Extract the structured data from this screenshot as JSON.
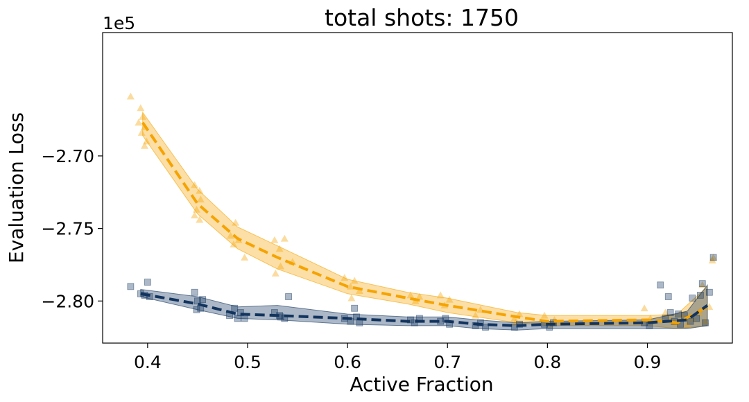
{
  "chart_data": {
    "type": "scatter",
    "title": "total shots: 1750",
    "xlabel": "Active Fraction",
    "ylabel": "Evaluation Loss",
    "offset_text": "1e5",
    "xlim": [
      0.355,
      0.985
    ],
    "ylim": [
      -2.829,
      -2.615
    ],
    "xticks": [
      0.4,
      0.5,
      0.6,
      0.7,
      0.8,
      0.9
    ],
    "xtick_labels": [
      "0.4",
      "0.5",
      "0.6",
      "0.7",
      "0.8",
      "0.9"
    ],
    "yticks": [
      -2.7,
      -2.75,
      -2.8
    ],
    "ytick_labels": [
      "−2.70",
      "−2.75",
      "−2.80"
    ],
    "series": [
      {
        "name": "orange",
        "color": "#f5a300",
        "marker": "triangle",
        "mean": [
          [
            0.395,
            -2.677
          ],
          [
            0.45,
            -2.733
          ],
          [
            0.49,
            -2.757
          ],
          [
            0.53,
            -2.77
          ],
          [
            0.6,
            -2.79
          ],
          [
            0.66,
            -2.798
          ],
          [
            0.7,
            -2.803
          ],
          [
            0.77,
            -2.811
          ],
          [
            0.8,
            -2.814
          ],
          [
            0.9,
            -2.813
          ],
          [
            0.93,
            -2.815
          ],
          [
            0.96,
            -2.804
          ]
        ],
        "band": [
          [
            0.395,
            -2.67,
            -2.686
          ],
          [
            0.45,
            -2.723,
            -2.74
          ],
          [
            0.49,
            -2.749,
            -2.764
          ],
          [
            0.53,
            -2.762,
            -2.778
          ],
          [
            0.6,
            -2.785,
            -2.795
          ],
          [
            0.66,
            -2.794,
            -2.802
          ],
          [
            0.7,
            -2.798,
            -2.808
          ],
          [
            0.77,
            -2.808,
            -2.815
          ],
          [
            0.8,
            -2.81,
            -2.817
          ],
          [
            0.9,
            -2.81,
            -2.817
          ],
          [
            0.93,
            -2.809,
            -2.819
          ],
          [
            0.96,
            -2.79,
            -2.817
          ]
        ],
        "points": [
          [
            0.383,
            -2.659
          ],
          [
            0.393,
            -2.667
          ],
          [
            0.395,
            -2.673
          ],
          [
            0.391,
            -2.677
          ],
          [
            0.397,
            -2.68
          ],
          [
            0.394,
            -2.684
          ],
          [
            0.399,
            -2.69
          ],
          [
            0.397,
            -2.693
          ],
          [
            0.447,
            -2.72
          ],
          [
            0.452,
            -2.724
          ],
          [
            0.453,
            -2.73
          ],
          [
            0.449,
            -2.737
          ],
          [
            0.447,
            -2.741
          ],
          [
            0.452,
            -2.744
          ],
          [
            0.483,
            -2.755
          ],
          [
            0.488,
            -2.746
          ],
          [
            0.491,
            -2.758
          ],
          [
            0.486,
            -2.761
          ],
          [
            0.497,
            -2.77
          ],
          [
            0.527,
            -2.758
          ],
          [
            0.532,
            -2.764
          ],
          [
            0.537,
            -2.757
          ],
          [
            0.533,
            -2.776
          ],
          [
            0.528,
            -2.781
          ],
          [
            0.545,
            -2.773
          ],
          [
            0.597,
            -2.784
          ],
          [
            0.603,
            -2.79
          ],
          [
            0.607,
            -2.786
          ],
          [
            0.612,
            -2.793
          ],
          [
            0.604,
            -2.798
          ],
          [
            0.663,
            -2.796
          ],
          [
            0.668,
            -2.8
          ],
          [
            0.672,
            -2.797
          ],
          [
            0.693,
            -2.796
          ],
          [
            0.697,
            -2.803
          ],
          [
            0.702,
            -2.799
          ],
          [
            0.733,
            -2.806
          ],
          [
            0.728,
            -2.81
          ],
          [
            0.767,
            -2.812
          ],
          [
            0.772,
            -2.809
          ],
          [
            0.768,
            -2.815
          ],
          [
            0.797,
            -2.81
          ],
          [
            0.803,
            -2.816
          ],
          [
            0.807,
            -2.813
          ],
          [
            0.897,
            -2.805
          ],
          [
            0.903,
            -2.812
          ],
          [
            0.918,
            -2.808
          ],
          [
            0.923,
            -2.813
          ],
          [
            0.928,
            -2.815
          ],
          [
            0.935,
            -2.81
          ],
          [
            0.94,
            -2.816
          ],
          [
            0.945,
            -2.812
          ],
          [
            0.952,
            -2.808
          ],
          [
            0.955,
            -2.789
          ],
          [
            0.958,
            -2.814
          ],
          [
            0.962,
            -2.804
          ],
          [
            0.965,
            -2.772
          ],
          [
            0.966,
            -2.77
          ]
        ]
      },
      {
        "name": "navy",
        "color": "#12345e",
        "marker": "square",
        "mean": [
          [
            0.393,
            -2.795
          ],
          [
            0.45,
            -2.802
          ],
          [
            0.49,
            -2.809
          ],
          [
            0.53,
            -2.81
          ],
          [
            0.6,
            -2.812
          ],
          [
            0.66,
            -2.814
          ],
          [
            0.7,
            -2.814
          ],
          [
            0.73,
            -2.816
          ],
          [
            0.77,
            -2.817
          ],
          [
            0.8,
            -2.816
          ],
          [
            0.9,
            -2.815
          ],
          [
            0.94,
            -2.813
          ],
          [
            0.96,
            -2.803
          ]
        ],
        "band": [
          [
            0.393,
            -2.792,
            -2.797
          ],
          [
            0.45,
            -2.797,
            -2.806
          ],
          [
            0.49,
            -2.804,
            -2.812
          ],
          [
            0.53,
            -2.803,
            -2.813
          ],
          [
            0.6,
            -2.809,
            -2.816
          ],
          [
            0.66,
            -2.811,
            -2.817
          ],
          [
            0.7,
            -2.811,
            -2.817
          ],
          [
            0.73,
            -2.813,
            -2.819
          ],
          [
            0.77,
            -2.815,
            -2.82
          ],
          [
            0.8,
            -2.814,
            -2.819
          ],
          [
            0.9,
            -2.813,
            -2.819
          ],
          [
            0.94,
            -2.807,
            -2.819
          ],
          [
            0.96,
            -2.789,
            -2.817
          ]
        ],
        "points": [
          [
            0.383,
            -2.79
          ],
          [
            0.393,
            -2.795
          ],
          [
            0.397,
            -2.796
          ],
          [
            0.4,
            -2.787
          ],
          [
            0.402,
            -2.797
          ],
          [
            0.447,
            -2.794
          ],
          [
            0.45,
            -2.8
          ],
          [
            0.453,
            -2.805
          ],
          [
            0.449,
            -2.806
          ],
          [
            0.455,
            -2.799
          ],
          [
            0.482,
            -2.81
          ],
          [
            0.487,
            -2.805
          ],
          [
            0.49,
            -2.812
          ],
          [
            0.493,
            -2.808
          ],
          [
            0.497,
            -2.812
          ],
          [
            0.527,
            -2.808
          ],
          [
            0.532,
            -2.81
          ],
          [
            0.537,
            -2.812
          ],
          [
            0.533,
            -2.811
          ],
          [
            0.541,
            -2.797
          ],
          [
            0.597,
            -2.812
          ],
          [
            0.603,
            -2.814
          ],
          [
            0.609,
            -2.811
          ],
          [
            0.612,
            -2.815
          ],
          [
            0.607,
            -2.805
          ],
          [
            0.663,
            -2.813
          ],
          [
            0.667,
            -2.815
          ],
          [
            0.672,
            -2.812
          ],
          [
            0.693,
            -2.814
          ],
          [
            0.698,
            -2.812
          ],
          [
            0.702,
            -2.816
          ],
          [
            0.728,
            -2.817
          ],
          [
            0.733,
            -2.815
          ],
          [
            0.738,
            -2.818
          ],
          [
            0.767,
            -2.818
          ],
          [
            0.772,
            -2.816
          ],
          [
            0.797,
            -2.816
          ],
          [
            0.802,
            -2.818
          ],
          [
            0.806,
            -2.815
          ],
          [
            0.897,
            -2.815
          ],
          [
            0.902,
            -2.817
          ],
          [
            0.913,
            -2.789
          ],
          [
            0.918,
            -2.812
          ],
          [
            0.921,
            -2.797
          ],
          [
            0.923,
            -2.808
          ],
          [
            0.927,
            -2.814
          ],
          [
            0.931,
            -2.809
          ],
          [
            0.933,
            -2.816
          ],
          [
            0.937,
            -2.81
          ],
          [
            0.943,
            -2.814
          ],
          [
            0.945,
            -2.798
          ],
          [
            0.949,
            -2.812
          ],
          [
            0.953,
            -2.796
          ],
          [
            0.955,
            -2.788
          ],
          [
            0.958,
            -2.815
          ],
          [
            0.962,
            -2.794
          ],
          [
            0.966,
            -2.77
          ]
        ]
      }
    ]
  }
}
